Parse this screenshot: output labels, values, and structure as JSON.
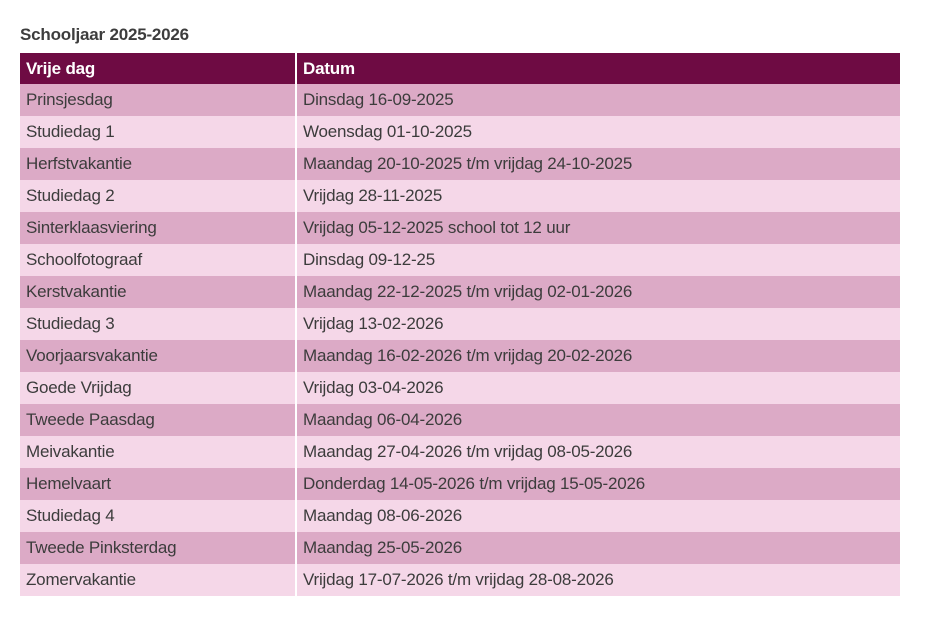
{
  "title": "Schooljaar 2025-2026",
  "table": {
    "headers": [
      "Vrije dag",
      "Datum"
    ],
    "rows": [
      {
        "day": "Prinsjesdag",
        "date": "Dinsdag 16-09-2025"
      },
      {
        "day": "Studiedag 1",
        "date": "Woensdag 01-10-2025"
      },
      {
        "day": "Herfstvakantie",
        "date": "Maandag 20-10-2025 t/m vrijdag 24-10-2025"
      },
      {
        "day": "Studiedag 2",
        "date": "Vrijdag 28-11-2025"
      },
      {
        "day": "Sinterklaasviering",
        "date": "Vrijdag 05-12-2025 school tot 12 uur"
      },
      {
        "day": "Schoolfotograaf",
        "date": "Dinsdag 09-12-25"
      },
      {
        "day": "Kerstvakantie",
        "date": "Maandag 22-12-2025 t/m vrijdag 02-01-2026"
      },
      {
        "day": "Studiedag 3",
        "date": "Vrijdag 13-02-2026"
      },
      {
        "day": "Voorjaarsvakantie",
        "date": "Maandag 16-02-2026 t/m vrijdag 20-02-2026"
      },
      {
        "day": "Goede Vrijdag",
        "date": "Vrijdag 03-04-2026"
      },
      {
        "day": "Tweede Paasdag",
        "date": "Maandag 06-04-2026"
      },
      {
        "day": "Meivakantie",
        "date": "Maandag 27-04-2026 t/m vrijdag 08-05-2026"
      },
      {
        "day": "Hemelvaart",
        "date": "Donderdag 14-05-2026 t/m vrijdag 15-05-2026"
      },
      {
        "day": "Studiedag 4",
        "date": "Maandag 08-06-2026"
      },
      {
        "day": "Tweede Pinksterdag",
        "date": "Maandag 25-05-2026"
      },
      {
        "day": "Zomervakantie",
        "date": "Vrijdag 17-07-2026 t/m vrijdag 28-08-2026"
      }
    ]
  },
  "colors": {
    "header_bg": "#6e0b43",
    "row_dark": "#dcaac6",
    "row_light": "#f5d7e8"
  }
}
